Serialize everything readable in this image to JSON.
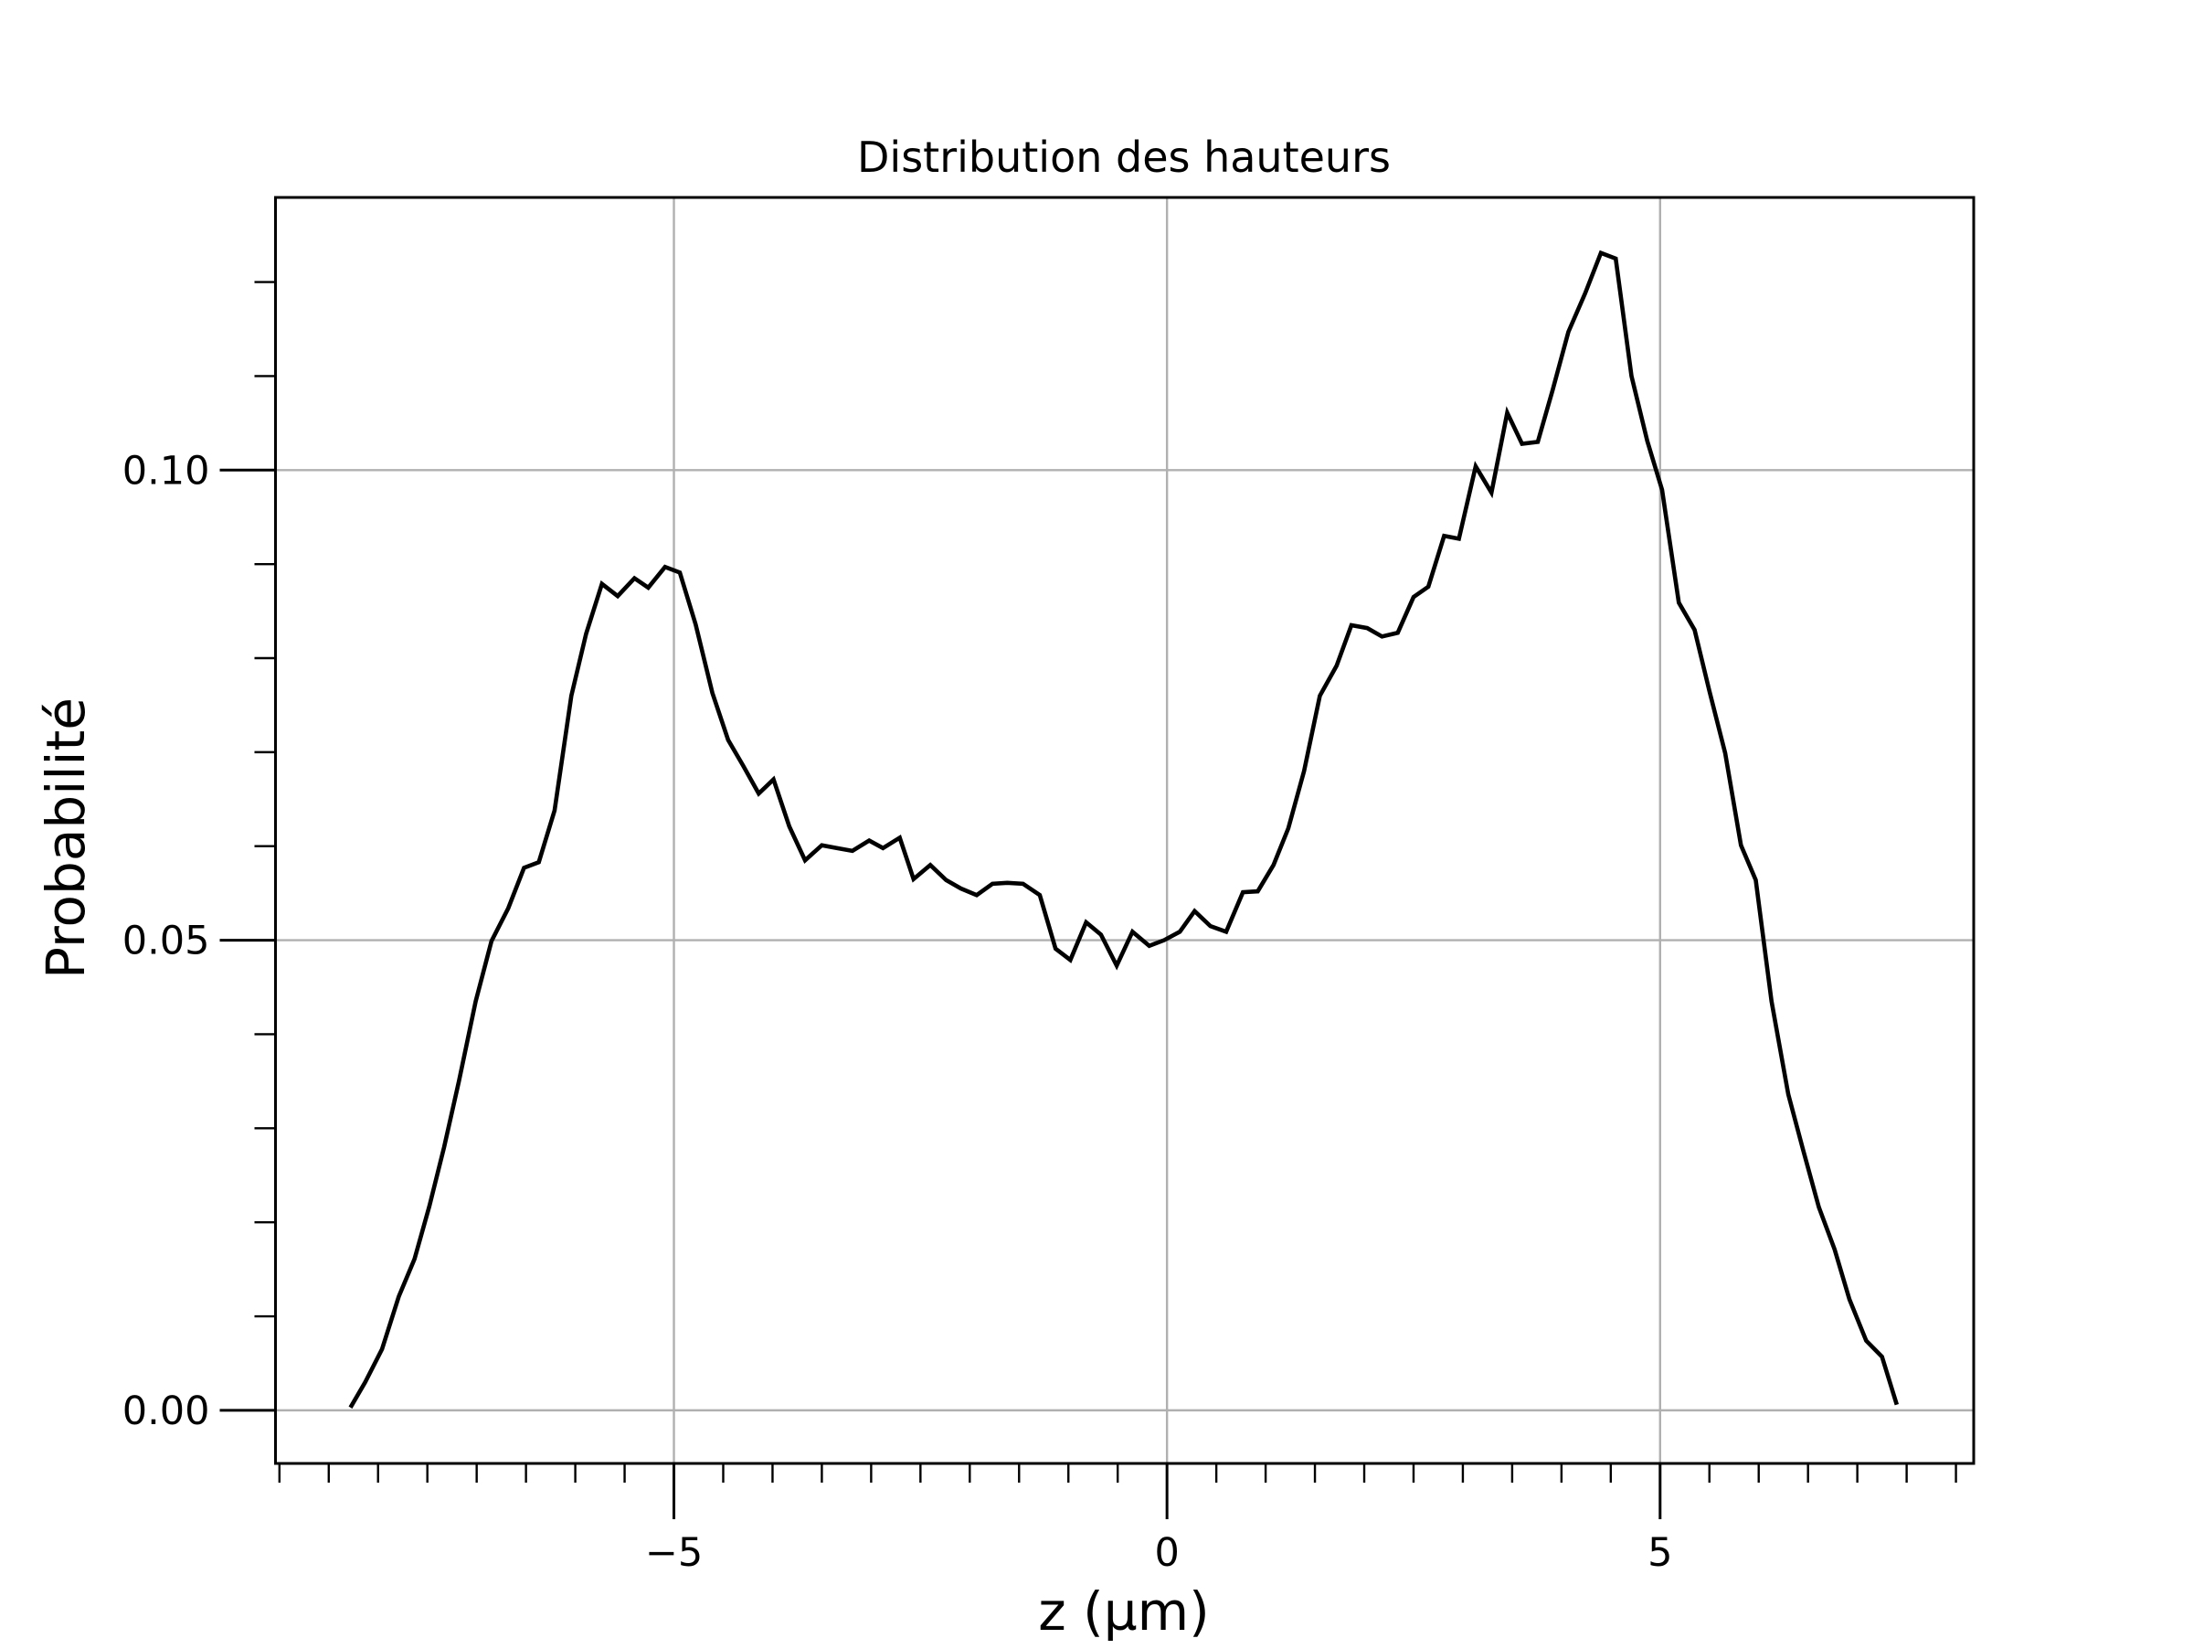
{
  "chart_data": {
    "type": "line",
    "title": "Distribution des hauteurs",
    "x_label": "z (µm)",
    "y_label": "Probabilité",
    "x": [
      -8.28,
      -8.13,
      -7.96,
      -7.79,
      -7.63,
      -7.48,
      -7.33,
      -7.18,
      -7.01,
      -6.85,
      -6.68,
      -6.52,
      -6.37,
      -6.21,
      -6.04,
      -5.89,
      -5.73,
      -5.57,
      -5.4,
      -5.26,
      -5.09,
      -4.94,
      -4.78,
      -4.61,
      -4.45,
      -4.3,
      -4.14,
      -3.99,
      -3.83,
      -3.67,
      -3.5,
      -3.35,
      -3.19,
      -3.02,
      -2.88,
      -2.71,
      -2.57,
      -2.4,
      -2.24,
      -2.09,
      -1.93,
      -1.77,
      -1.62,
      -1.46,
      -1.29,
      -1.13,
      -0.98,
      -0.82,
      -0.67,
      -0.51,
      -0.35,
      -0.18,
      -0.03,
      0.13,
      0.28,
      0.44,
      0.6,
      0.77,
      0.92,
      1.08,
      1.23,
      1.39,
      1.55,
      1.72,
      1.87,
      2.03,
      2.18,
      2.34,
      2.5,
      2.65,
      2.81,
      2.96,
      3.13,
      3.29,
      3.45,
      3.6,
      3.76,
      3.91,
      4.07,
      4.24,
      4.4,
      4.55,
      4.71,
      4.87,
      5.02,
      5.19,
      5.35,
      5.5,
      5.66,
      5.82,
      5.97,
      6.13,
      6.3,
      6.45,
      6.61,
      6.77,
      6.92,
      7.09,
      7.25,
      7.4
    ],
    "series": [
      {
        "color": "#000000",
        "values": [
          0.0003,
          0.003,
          0.0065,
          0.0121,
          0.0161,
          0.0217,
          0.028,
          0.035,
          0.0435,
          0.0499,
          0.0534,
          0.0577,
          0.0583,
          0.0638,
          0.076,
          0.0826,
          0.0879,
          0.0866,
          0.0885,
          0.0875,
          0.0897,
          0.0891,
          0.0836,
          0.0763,
          0.0713,
          0.0686,
          0.0656,
          0.0671,
          0.0621,
          0.0585,
          0.0601,
          0.0598,
          0.0595,
          0.0606,
          0.0598,
          0.0609,
          0.0565,
          0.058,
          0.0564,
          0.0555,
          0.0548,
          0.056,
          0.0561,
          0.056,
          0.0548,
          0.0491,
          0.0479,
          0.0519,
          0.0506,
          0.0473,
          0.0509,
          0.0494,
          0.05,
          0.0509,
          0.0531,
          0.0515,
          0.0509,
          0.0551,
          0.0552,
          0.058,
          0.0619,
          0.068,
          0.076,
          0.0792,
          0.0835,
          0.0832,
          0.0823,
          0.0827,
          0.0865,
          0.0876,
          0.093,
          0.0927,
          0.1004,
          0.0976,
          0.1061,
          0.1028,
          0.103,
          0.1085,
          0.1147,
          0.1188,
          0.1231,
          0.1225,
          0.11,
          0.1031,
          0.0979,
          0.0859,
          0.083,
          0.0765,
          0.0699,
          0.0601,
          0.0564,
          0.0435,
          0.0336,
          0.0277,
          0.0216,
          0.0171,
          0.0118,
          0.0074,
          0.0057,
          0.0006
        ]
      }
    ],
    "xlim": [
      -9.04,
      8.18
    ],
    "ylim": [
      -0.00565,
      0.129
    ],
    "xticks": [
      {
        "value": -5,
        "label": "−5"
      },
      0,
      5
    ],
    "yticks": [
      {
        "value": 0,
        "label": "0.00"
      },
      {
        "value": 0.05,
        "label": "0.05"
      },
      {
        "value": 0.1,
        "label": "0.10"
      }
    ],
    "xminorticks": [
      -9,
      -8.5,
      -8,
      -7.5,
      -7,
      -6.5,
      -6,
      -5.5,
      -4.5,
      -4,
      -3.5,
      -3,
      -2.5,
      -2,
      -1.5,
      -1,
      -0.5,
      0.5,
      1,
      1.5,
      2,
      2.5,
      3,
      3.5,
      4,
      4.5,
      5.5,
      6,
      6.5,
      7,
      7.5,
      8
    ],
    "yminorticks": [
      0.01,
      0.02,
      0.03,
      0.04,
      0.06,
      0.07,
      0.08,
      0.09,
      0.11,
      0.12
    ],
    "grid": true
  }
}
